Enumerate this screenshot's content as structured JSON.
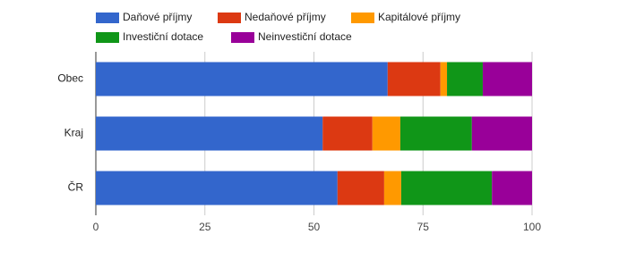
{
  "chart_data": {
    "type": "stacked-bar-horizontal",
    "categories": [
      "Obec",
      "Kraj",
      "ČR"
    ],
    "series": [
      {
        "name": "Daňové příjmy",
        "color": "#3366cc",
        "values": [
          66.9,
          52.0,
          55.4
        ]
      },
      {
        "name": "Nedaňové příjmy",
        "color": "#dc3912",
        "values": [
          12.1,
          11.4,
          10.7
        ]
      },
      {
        "name": "Kapitálové příjmy",
        "color": "#ff9900",
        "values": [
          1.5,
          6.4,
          3.9
        ]
      },
      {
        "name": "Investiční dotace",
        "color": "#109618",
        "values": [
          8.2,
          16.4,
          20.8
        ]
      },
      {
        "name": "Neinvestiční dotace",
        "color": "#990099",
        "values": [
          11.3,
          13.8,
          9.2
        ]
      }
    ],
    "xlim": [
      0,
      100
    ],
    "xticks": [
      0,
      25,
      50,
      75,
      100
    ],
    "grid": true
  }
}
